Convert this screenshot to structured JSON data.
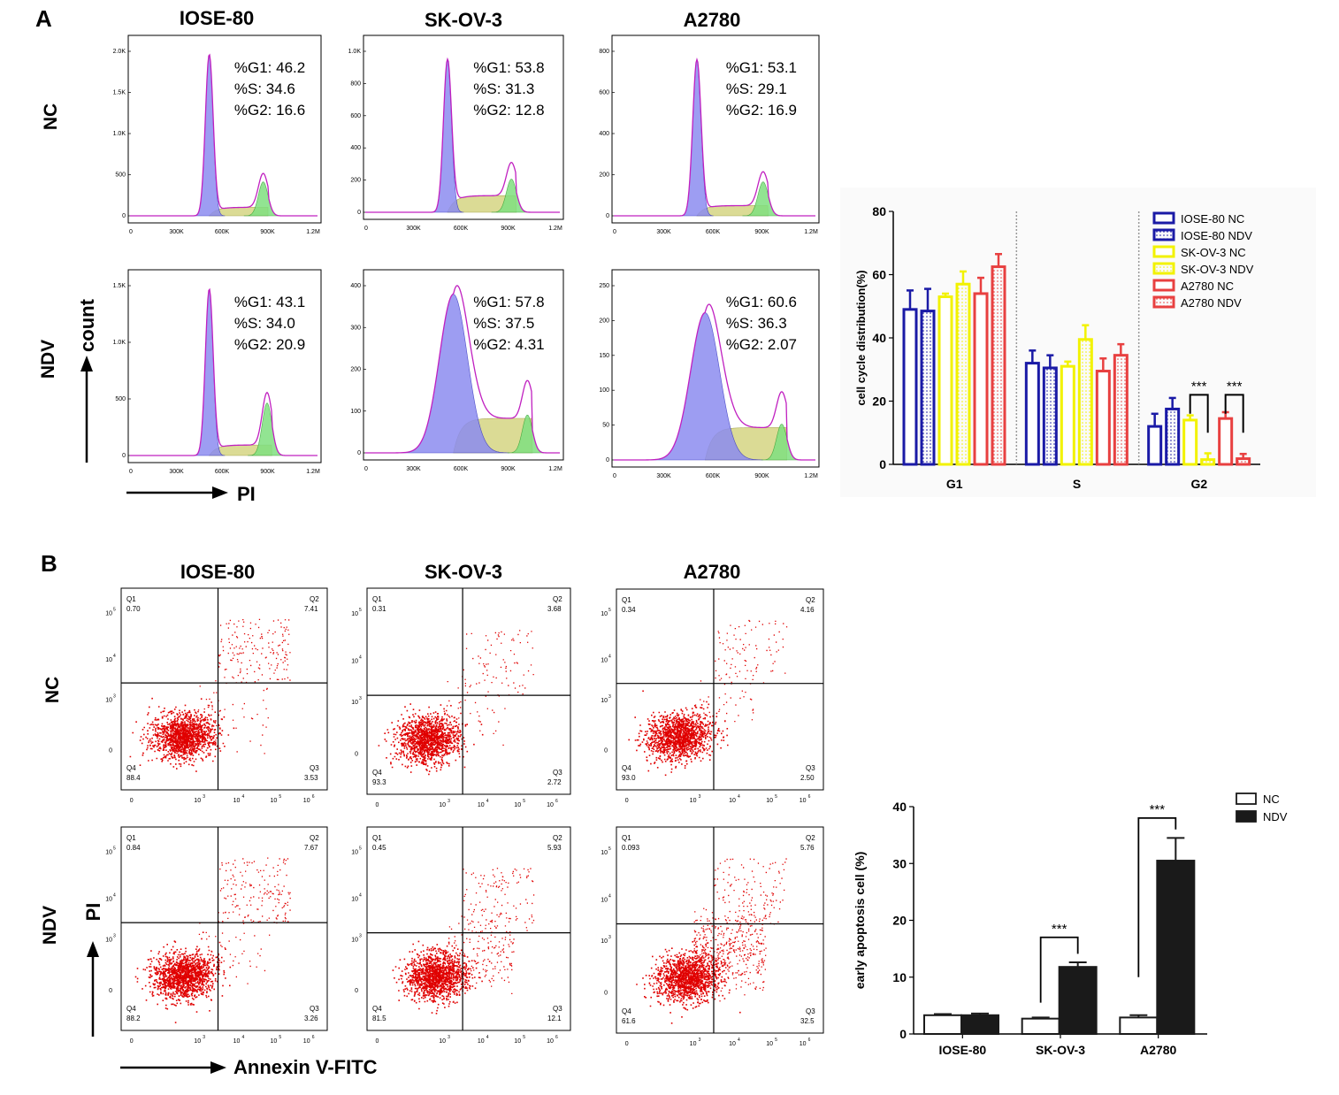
{
  "panels": {
    "A": {
      "letter": "A",
      "columns": [
        "IOSE-80",
        "SK-OV-3",
        "A2780"
      ],
      "rows": [
        "NC",
        "NDV"
      ],
      "axis_x": "PI",
      "axis_y": "count",
      "histograms": [
        {
          "row": "NC",
          "col": "IOSE-80",
          "g1": "%G1: 46.2",
          "s": "%S: 34.6",
          "g2": "%G2: 16.6",
          "yticks": [
            "2.0K",
            "1.5K",
            "1.0K",
            "500",
            "0"
          ],
          "xticks": [
            "0",
            "300K",
            "600K",
            "900K",
            "1.2M"
          ],
          "peak1": 0.42,
          "peak2": 0.7,
          "g1_level": 0.95,
          "g2_level": 0.2,
          "s_level": 0.05
        },
        {
          "row": "NC",
          "col": "SK-OV-3",
          "g1": "%G1: 53.8",
          "s": "%S: 31.3",
          "g2": "%G2: 12.8",
          "yticks": [
            "1.0K",
            "800",
            "600",
            "400",
            "200",
            "0"
          ],
          "xticks": [
            "0",
            "300K",
            "600K",
            "900K",
            "1.2M"
          ],
          "peak1": 0.42,
          "peak2": 0.74,
          "g1_level": 0.92,
          "g2_level": 0.2,
          "s_level": 0.1
        },
        {
          "row": "NC",
          "col": "A2780",
          "g1": "%G1: 53.1",
          "s": "%S: 29.1",
          "g2": "%G2: 16.9",
          "yticks": [
            "800",
            "600",
            "400",
            "200",
            "0"
          ],
          "xticks": [
            "0",
            "300K",
            "600K",
            "900K",
            "1.2M"
          ],
          "peak1": 0.41,
          "peak2": 0.73,
          "g1_level": 0.92,
          "g2_level": 0.2,
          "s_level": 0.06
        },
        {
          "row": "NDV",
          "col": "IOSE-80",
          "g1": "%G1: 43.1",
          "s": "%S: 34.0",
          "g2": "%G2: 20.9",
          "yticks": [
            "1.5K",
            "1.0K",
            "500",
            "0"
          ],
          "xticks": [
            "0",
            "300K",
            "600K",
            "900K",
            "1.2M"
          ],
          "peak1": 0.42,
          "peak2": 0.72,
          "g1_level": 0.95,
          "g2_level": 0.3,
          "s_level": 0.06
        },
        {
          "row": "NDV",
          "col": "SK-OV-3",
          "g1": "%G1: 57.8",
          "s": "%S: 37.5",
          "g2": "%G2: 4.31",
          "yticks": [
            "400",
            "300",
            "200",
            "100",
            "0"
          ],
          "xticks": [
            "0",
            "300K",
            "600K",
            "900K",
            "1.2M"
          ],
          "peak1": 0.45,
          "peak2": 0.82,
          "g1_level": 0.92,
          "g2_level": 0.22,
          "s_level": 0.2
        },
        {
          "row": "NDV",
          "col": "A2780",
          "g1": "%G1: 60.6",
          "s": "%S: 36.3",
          "g2": "%G2: 2.07",
          "yticks": [
            "250",
            "200",
            "150",
            "100",
            "50",
            "0"
          ],
          "xticks": [
            "0",
            "300K",
            "600K",
            "900K",
            "1.2M"
          ],
          "peak1": 0.45,
          "peak2": 0.82,
          "g1_level": 0.82,
          "g2_level": 0.2,
          "s_level": 0.18
        }
      ]
    },
    "B": {
      "letter": "B",
      "columns": [
        "IOSE-80",
        "SK-OV-3",
        "A2780"
      ],
      "rows": [
        "NC",
        "NDV"
      ],
      "axis_x": "Annexin V-FITC",
      "axis_y": "PI",
      "scatters": [
        {
          "row": "NC",
          "col": "IOSE-80",
          "q1": "0.70",
          "q2": "7.41",
          "q3": "3.53",
          "q4": "88.4"
        },
        {
          "row": "NC",
          "col": "SK-OV-3",
          "q1": "0.31",
          "q2": "3.68",
          "q3": "2.72",
          "q4": "93.3"
        },
        {
          "row": "NC",
          "col": "A2780",
          "q1": "0.34",
          "q2": "4.16",
          "q3": "2.50",
          "q4": "93.0"
        },
        {
          "row": "NDV",
          "col": "IOSE-80",
          "q1": "0.84",
          "q2": "7.67",
          "q3": "3.26",
          "q4": "88.2"
        },
        {
          "row": "NDV",
          "col": "SK-OV-3",
          "q1": "0.45",
          "q2": "5.93",
          "q3": "12.1",
          "q4": "81.5"
        },
        {
          "row": "NDV",
          "col": "A2780",
          "q1": "0.093",
          "q2": "5.76",
          "q3": "32.5",
          "q4": "61.6"
        }
      ],
      "quadrant_labels": [
        "Q1",
        "Q2",
        "Q3",
        "Q4"
      ],
      "log_ticks": [
        "0",
        "10",
        "10",
        "10",
        "10"
      ]
    }
  },
  "chart_data": [
    {
      "type": "bar",
      "title": "",
      "xlabel": "",
      "ylabel": "cell cycle distribution(%)",
      "ylim": [
        0,
        80
      ],
      "yticks": [
        0,
        20,
        40,
        60,
        80
      ],
      "categories": [
        "G1",
        "S",
        "G2"
      ],
      "series": [
        {
          "name": "IOSE-80 NC",
          "color": "#1a1aa6",
          "pattern": "open",
          "values": [
            49,
            32,
            12
          ],
          "errors": [
            6,
            4,
            4
          ]
        },
        {
          "name": "IOSE-80 NDV",
          "color": "#1a1aa6",
          "pattern": "dotted",
          "values": [
            48.5,
            30.5,
            17.5
          ],
          "errors": [
            7,
            4,
            3.5
          ]
        },
        {
          "name": "SK-OV-3 NC",
          "color": "#f2f200",
          "pattern": "open",
          "values": [
            53,
            31,
            14
          ],
          "errors": [
            1,
            1.5,
            1.5
          ]
        },
        {
          "name": "SK-OV-3 NDV",
          "color": "#f2f200",
          "pattern": "dotted",
          "values": [
            57,
            39.5,
            1.5
          ],
          "errors": [
            4,
            4.5,
            2
          ]
        },
        {
          "name": "A2780 NC",
          "color": "#e84040",
          "pattern": "open",
          "values": [
            54,
            29.5,
            14.5
          ],
          "errors": [
            5,
            4,
            2
          ]
        },
        {
          "name": "A2780 NDV",
          "color": "#e84040",
          "pattern": "dotted",
          "values": [
            62.5,
            34.5,
            1.8
          ],
          "errors": [
            4,
            3.5,
            1.5
          ]
        }
      ],
      "annotations": [
        "***",
        "***"
      ]
    },
    {
      "type": "bar",
      "title": "",
      "xlabel": "",
      "ylabel": "early apoptosis cell (%)",
      "ylim": [
        0,
        40
      ],
      "yticks": [
        0,
        10,
        20,
        30,
        40
      ],
      "categories": [
        "IOSE-80",
        "SK-OV-3",
        "A2780"
      ],
      "series": [
        {
          "name": "NC",
          "color": "#ffffff",
          "values": [
            3.3,
            2.7,
            2.9
          ],
          "errors": [
            0.2,
            0.2,
            0.4
          ]
        },
        {
          "name": "NDV",
          "color": "#1a1a1a",
          "values": [
            3.3,
            11.8,
            30.5
          ],
          "errors": [
            0.3,
            0.8,
            4.0
          ]
        }
      ],
      "annotations": [
        "***",
        "***"
      ]
    }
  ]
}
